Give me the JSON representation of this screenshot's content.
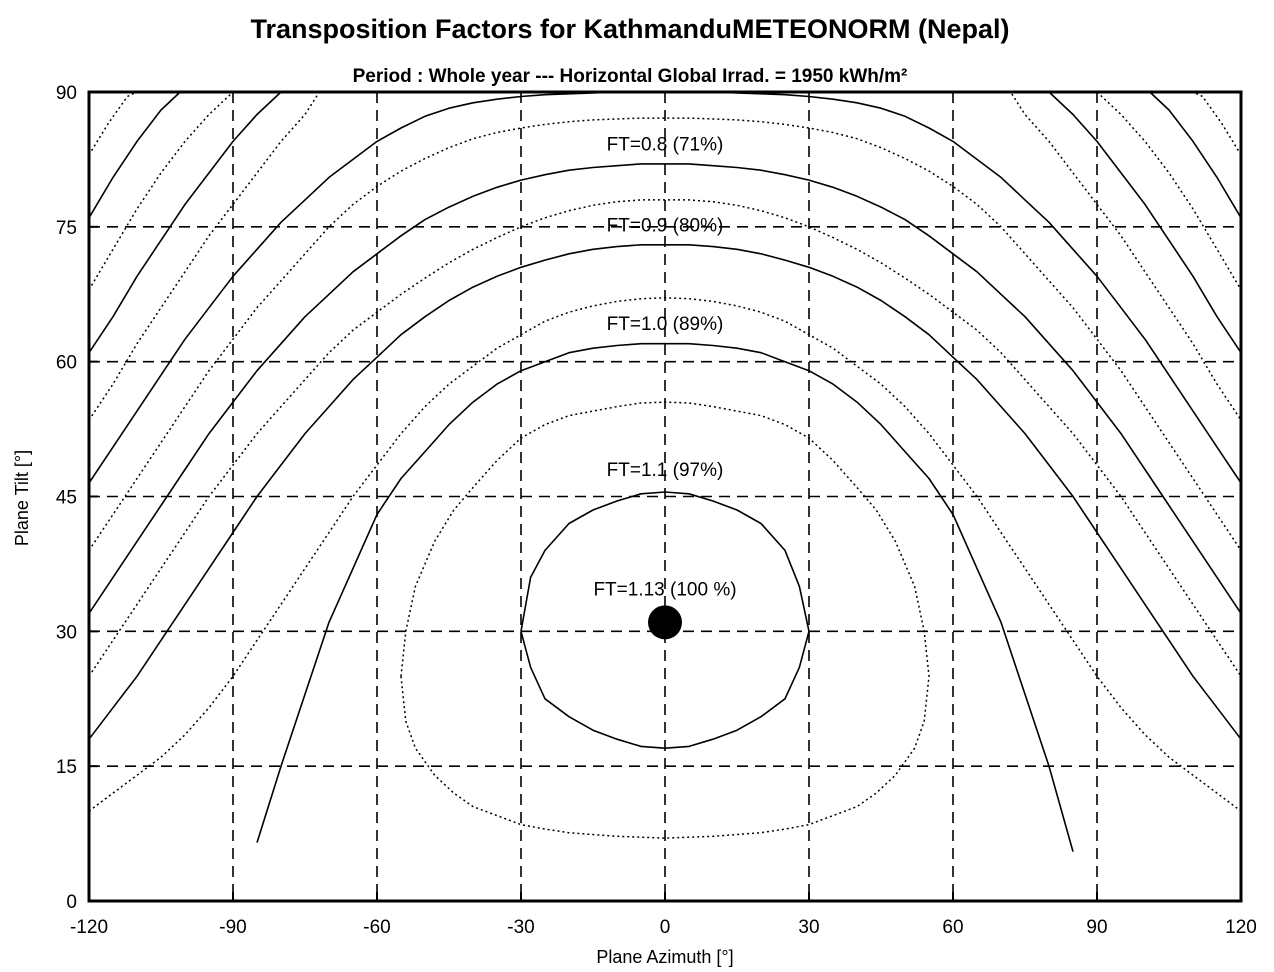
{
  "chart_data": {
    "type": "line",
    "title": "Transposition Factors for KathmanduMETEONORM  (Nepal)",
    "subtitle": "Period :  Whole year  ---  Horizontal Global Irrad. = 1950 kWh/m²",
    "xlabel": "Plane Azimuth [°]",
    "ylabel": "Plane Tilt [°]",
    "xlim": [
      -120,
      120
    ],
    "ylim": [
      0,
      90
    ],
    "x_ticks": [
      -120,
      -90,
      -60,
      -30,
      0,
      30,
      60,
      90,
      120
    ],
    "y_ticks": [
      0,
      15,
      30,
      45,
      60,
      75,
      90
    ],
    "x_tick_labels": [
      "-120",
      "-90",
      "-60",
      "-30",
      "0",
      "30",
      "60",
      "90",
      "120"
    ],
    "y_tick_labels": [
      "0",
      "15",
      "30",
      "45",
      "60",
      "75",
      "90"
    ],
    "grid": true,
    "grid_style": "dashed",
    "optimum": {
      "azimuth": 0,
      "tilt": 31,
      "label": "FT=1.13 (100 %)"
    },
    "series": [
      {
        "name": "FT=1.1 (97%)",
        "style": "solid",
        "x": [
          -30,
          -29,
          -28,
          -25,
          -20,
          -15,
          -10,
          -5,
          0,
          5,
          10,
          15,
          20,
          25,
          28,
          30,
          28,
          25,
          20,
          15,
          10,
          5,
          0,
          -5,
          -10,
          -15,
          -20,
          -25,
          -28,
          -30
        ],
        "y": [
          30,
          33,
          36,
          39,
          42,
          43.5,
          44.5,
          45.3,
          45.5,
          45.3,
          44.5,
          43.5,
          42,
          39,
          35,
          30,
          26,
          22.5,
          20.5,
          19,
          18,
          17.2,
          17,
          17.2,
          18,
          19,
          20.5,
          22.5,
          26,
          30
        ]
      },
      {
        "name": "",
        "style": "dotted",
        "x": [
          -55,
          -54,
          -52,
          -48,
          -44,
          -40,
          -35,
          -30,
          -25,
          -20,
          -15,
          -10,
          -5,
          0,
          5,
          10,
          15,
          20,
          25,
          30,
          35,
          40,
          44,
          48,
          52,
          54,
          55,
          54,
          52,
          48,
          44,
          40,
          35,
          30,
          25,
          20,
          15,
          10,
          5,
          0,
          -5,
          -10,
          -15,
          -20,
          -25,
          -30,
          -35,
          -40,
          -44,
          -48,
          -52,
          -54,
          -55
        ],
        "y": [
          25,
          20,
          17,
          14,
          12,
          10.5,
          9.5,
          8.5,
          8,
          7.6,
          7.4,
          7.2,
          7.1,
          7,
          7.1,
          7.2,
          7.4,
          7.6,
          8,
          8.5,
          9.5,
          10.5,
          12,
          14,
          17,
          20,
          25,
          30,
          35,
          40,
          43.5,
          46,
          49,
          51.5,
          53,
          54,
          54.5,
          55,
          55.4,
          55.5,
          55.4,
          55,
          54.5,
          54,
          53,
          51.5,
          49,
          46,
          43.5,
          40,
          35,
          30,
          25
        ]
      },
      {
        "name": "FT=1.0 (89%)",
        "style": "solid",
        "x": [
          -85,
          -80,
          -75,
          -70,
          -65,
          -60,
          -55,
          -50,
          -45,
          -40,
          -35,
          -30,
          -25,
          -20,
          -15,
          -10,
          -5,
          0,
          5,
          10,
          15,
          20,
          25,
          30,
          35,
          40,
          45,
          50,
          55,
          60,
          65,
          70,
          75,
          80,
          85
        ],
        "y": [
          6.5,
          15,
          23,
          31,
          37,
          43,
          47,
          50,
          53,
          55.5,
          57.5,
          59,
          60,
          61,
          61.5,
          61.8,
          62,
          62,
          62,
          61.8,
          61.5,
          61,
          60,
          59,
          57.5,
          55.5,
          53,
          50,
          47,
          43,
          37,
          31,
          23,
          15,
          5.5
        ]
      },
      {
        "name": "",
        "style": "dotted",
        "x": [
          -120,
          -115,
          -110,
          -105,
          -100,
          -95,
          -90,
          -85,
          -80,
          -75,
          -70,
          -65,
          -60,
          -55,
          -50,
          -45,
          -40,
          -35,
          -30,
          -25,
          -20,
          -15,
          -10,
          -5,
          0,
          5,
          10,
          15,
          20,
          25,
          30,
          35,
          40,
          45,
          50,
          55,
          60,
          65,
          70,
          75,
          80,
          85,
          90,
          95,
          100,
          105,
          110,
          115,
          120
        ],
        "y": [
          10,
          12,
          14,
          16,
          18.5,
          21.5,
          25,
          29,
          33,
          37,
          41,
          45,
          48.5,
          52,
          55,
          57.5,
          59.5,
          61.5,
          63,
          64.5,
          65.5,
          66.2,
          66.7,
          67,
          67.1,
          67,
          66.7,
          66.2,
          65.5,
          64.5,
          63,
          61.5,
          59.5,
          57.5,
          55,
          52,
          48.5,
          45,
          41,
          37,
          33,
          29,
          25,
          21.5,
          18.5,
          16,
          14,
          12,
          10
        ]
      },
      {
        "name": "FT=0.9 (80%)",
        "style": "solid",
        "x": [
          -120,
          -115,
          -110,
          -105,
          -100,
          -95,
          -90,
          -85,
          -80,
          -75,
          -70,
          -65,
          -60,
          -55,
          -50,
          -45,
          -40,
          -35,
          -30,
          -25,
          -20,
          -15,
          -10,
          -5,
          0,
          5,
          10,
          15,
          20,
          25,
          30,
          35,
          40,
          45,
          50,
          55,
          60,
          65,
          70,
          75,
          80,
          85,
          90,
          95,
          100,
          105,
          110,
          115,
          120
        ],
        "y": [
          18,
          21.5,
          25,
          29,
          33,
          37,
          41,
          45,
          48.5,
          52,
          55,
          58,
          60.5,
          63,
          65,
          66.8,
          68.3,
          69.5,
          70.5,
          71.3,
          72,
          72.5,
          72.8,
          73,
          73,
          73,
          72.8,
          72.5,
          72,
          71.3,
          70.5,
          69.5,
          68.3,
          66.8,
          65,
          63,
          60.5,
          58,
          55,
          52,
          48.5,
          45,
          41,
          37,
          33,
          29,
          25,
          21.5,
          18
        ]
      },
      {
        "name": "",
        "style": "dotted",
        "x": [
          -120,
          -115,
          -110,
          -105,
          -100,
          -95,
          -90,
          -85,
          -80,
          -75,
          -70,
          -65,
          -60,
          -55,
          -50,
          -45,
          -40,
          -35,
          -30,
          -25,
          -20,
          -15,
          -10,
          -5,
          0,
          5,
          10,
          15,
          20,
          25,
          30,
          35,
          40,
          45,
          50,
          55,
          60,
          65,
          70,
          75,
          80,
          85,
          90,
          95,
          100,
          105,
          110,
          115,
          120
        ],
        "y": [
          25,
          29,
          33,
          37,
          41,
          45,
          48.5,
          52,
          55,
          58,
          61,
          63.5,
          65.5,
          67.5,
          69.3,
          71,
          72.5,
          73.8,
          75,
          76,
          76.8,
          77.4,
          77.8,
          78,
          78,
          78,
          77.8,
          77.4,
          76.8,
          76,
          75,
          73.8,
          72.5,
          71,
          69.3,
          67.5,
          65.5,
          63.5,
          61,
          58,
          55,
          52,
          48.5,
          45,
          41,
          37,
          33,
          29,
          25
        ]
      },
      {
        "name": "FT=0.8 (71%)",
        "style": "solid",
        "x": [
          -120,
          -115,
          -110,
          -105,
          -100,
          -95,
          -90,
          -85,
          -80,
          -75,
          -70,
          -65,
          -60,
          -55,
          -50,
          -45,
          -40,
          -35,
          -30,
          -25,
          -20,
          -15,
          -10,
          -5,
          0,
          5,
          10,
          15,
          20,
          25,
          30,
          35,
          40,
          45,
          50,
          55,
          60,
          65,
          70,
          75,
          80,
          85,
          90,
          95,
          100,
          105,
          110,
          115,
          120
        ],
        "y": [
          32,
          36,
          40,
          44,
          48,
          52,
          55.5,
          59,
          62,
          65,
          67.5,
          70,
          72,
          74,
          75.8,
          77.2,
          78.4,
          79.4,
          80.2,
          80.8,
          81.3,
          81.6,
          81.8,
          82,
          82,
          82,
          81.8,
          81.6,
          81.3,
          80.8,
          80.2,
          79.4,
          78.4,
          77.2,
          75.8,
          74,
          72,
          70,
          67.5,
          65,
          62,
          59,
          55.5,
          52,
          48,
          44,
          40,
          36,
          32
        ]
      },
      {
        "name": "",
        "style": "dotted",
        "x": [
          -120,
          -115,
          -110,
          -105,
          -100,
          -95,
          -90,
          -85,
          -80,
          -75,
          -70,
          -65,
          -60,
          -55,
          -50,
          -45,
          -40,
          -35,
          -30,
          -25,
          -20,
          -15,
          -10,
          -5,
          0,
          5,
          10,
          15,
          20,
          25,
          30,
          35,
          40,
          45,
          50,
          55,
          60,
          65,
          70,
          75,
          80,
          85,
          90,
          95,
          100,
          105,
          110,
          115,
          120
        ],
        "y": [
          39,
          43,
          47,
          51,
          55,
          59,
          62.5,
          66,
          69,
          72,
          75,
          77.5,
          79.5,
          81.2,
          82.6,
          83.8,
          84.8,
          85.5,
          86,
          86.4,
          86.7,
          86.9,
          87,
          87.1,
          87.1,
          87.1,
          87,
          86.9,
          86.7,
          86.4,
          86,
          85.5,
          84.8,
          83.8,
          82.6,
          81.2,
          79.5,
          77.5,
          75,
          72,
          69,
          66,
          62.5,
          59,
          55,
          51,
          47,
          43,
          39
        ]
      },
      {
        "name": "",
        "style": "solid",
        "x": [
          -120,
          -115,
          -110,
          -105,
          -100,
          -95,
          -90,
          -85,
          -80,
          -75,
          -70,
          -65,
          -60,
          -55,
          -50,
          -45,
          -40,
          -35,
          -30,
          -25,
          -20,
          -15,
          -10,
          -5,
          0,
          5,
          10,
          15,
          20,
          25,
          30,
          35,
          40,
          45,
          50,
          55,
          60,
          65,
          70,
          75,
          80,
          85,
          90,
          95,
          100,
          105,
          110,
          115,
          120
        ],
        "y": [
          46.5,
          50.5,
          54.5,
          58.5,
          62.5,
          66,
          69.5,
          72.5,
          75.5,
          78,
          80.5,
          82.5,
          84.5,
          86,
          87.3,
          88.2,
          88.8,
          89.2,
          89.5,
          89.7,
          89.8,
          89.9,
          90,
          90,
          90,
          90,
          90,
          89.9,
          89.8,
          89.7,
          89.5,
          89.2,
          88.8,
          88.2,
          87.3,
          86,
          84.5,
          82.5,
          80.5,
          78,
          75.5,
          72.5,
          69.5,
          66,
          62.5,
          58.5,
          54.5,
          50.5,
          46.5
        ]
      },
      {
        "name": "",
        "style": "dotted",
        "x": [
          -120,
          -115,
          -110,
          -105,
          -100,
          -95,
          -90,
          -85,
          -80,
          -75,
          -72,
          72,
          75,
          80,
          85,
          90,
          95,
          100,
          105,
          110,
          115,
          120
        ],
        "y": [
          53.5,
          57.5,
          62,
          66,
          70,
          74,
          77.5,
          81,
          84.5,
          87.5,
          90,
          90,
          87.5,
          84.5,
          81,
          77.5,
          74,
          70,
          66,
          62,
          57.5,
          53.5
        ]
      },
      {
        "name": "",
        "style": "solid",
        "x": [
          -120,
          -115,
          -110,
          -105,
          -100,
          -95,
          -90,
          -85,
          -80,
          -78,
          78,
          80,
          85,
          90,
          95,
          100,
          105,
          110,
          115,
          120
        ],
        "y": [
          61,
          65,
          69.5,
          73.5,
          77.5,
          81,
          84.5,
          87.5,
          90,
          90,
          90,
          90,
          87.5,
          84.5,
          81,
          77.5,
          73.5,
          69.5,
          65,
          61
        ]
      },
      {
        "name": "",
        "style": "dotted",
        "x": [
          -120,
          -115,
          -110,
          -105,
          -100,
          -95,
          -90,
          -86,
          86,
          90,
          95,
          100,
          105,
          110,
          115,
          120
        ],
        "y": [
          68,
          72.5,
          77,
          81,
          84.5,
          87.5,
          90,
          90,
          90,
          90,
          87.5,
          84.5,
          81,
          77,
          72.5,
          68
        ]
      },
      {
        "name": "",
        "style": "solid",
        "x": [
          -120,
          -115,
          -110,
          -105,
          -101,
          101,
          105,
          110,
          115,
          120
        ],
        "y": [
          76,
          80.5,
          84.5,
          88,
          90,
          90,
          88,
          84.5,
          80.5,
          76
        ]
      },
      {
        "name": "",
        "style": "dotted",
        "x": [
          -120,
          -116,
          -112,
          -110,
          110,
          112,
          116,
          120
        ],
        "y": [
          83,
          86.5,
          89.5,
          90,
          90,
          89.5,
          86.5,
          83
        ]
      }
    ],
    "contour_labels": [
      {
        "text": "FT=0.8 (71%)",
        "x": 0,
        "y": 83.5
      },
      {
        "text": "FT=0.9 (80%)",
        "x": 0,
        "y": 74.5
      },
      {
        "text": "FT=1.0 (89%)",
        "x": 0,
        "y": 63.5
      },
      {
        "text": "FT=1.1 (97%)",
        "x": 0,
        "y": 47.3
      },
      {
        "text": "FT=1.13 (100 %)",
        "x": 0,
        "y": 34
      }
    ]
  }
}
